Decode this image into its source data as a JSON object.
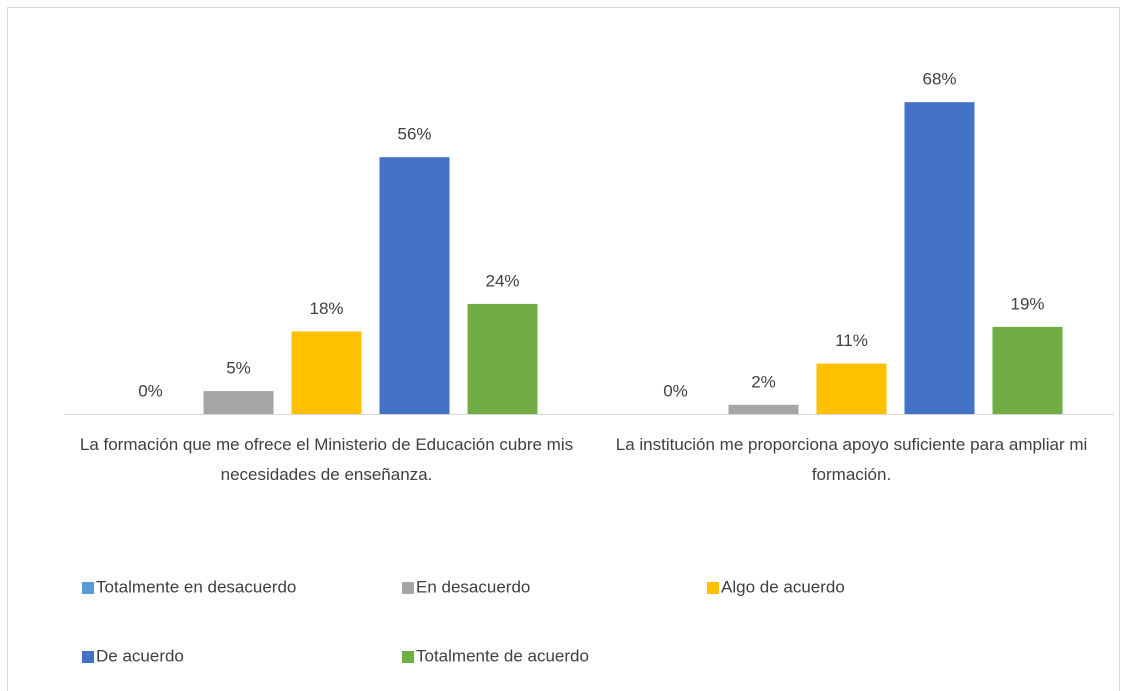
{
  "chart_data": {
    "type": "bar",
    "categories": [
      "La formación que me ofrece el Ministerio de Educación cubre mis necesidades de enseñanza.",
      "La institución me proporciona apoyo suficiente para ampliar mi formación."
    ],
    "series": [
      {
        "name": "Totalmente en desacuerdo",
        "color": "#5b9bd5",
        "values": [
          0,
          0
        ],
        "value_labels": [
          "0%",
          "0%"
        ]
      },
      {
        "name": "En desacuerdo",
        "color": "#a5a5a5",
        "values": [
          5,
          2
        ],
        "value_labels": [
          "5%",
          "2%"
        ]
      },
      {
        "name": "Algo de acuerdo",
        "color": "#ffc000",
        "values": [
          18,
          11
        ],
        "value_labels": [
          "18%",
          "11%"
        ]
      },
      {
        "name": "De acuerdo",
        "color": "#4472c4",
        "values": [
          56,
          68
        ],
        "value_labels": [
          "56%",
          "68%"
        ]
      },
      {
        "name": "Totalmente de acuerdo",
        "color": "#70ad47",
        "values": [
          24,
          19
        ],
        "value_labels": [
          "24%",
          "19%"
        ]
      }
    ],
    "ylim": [
      0,
      70
    ],
    "legend": "bottom"
  }
}
